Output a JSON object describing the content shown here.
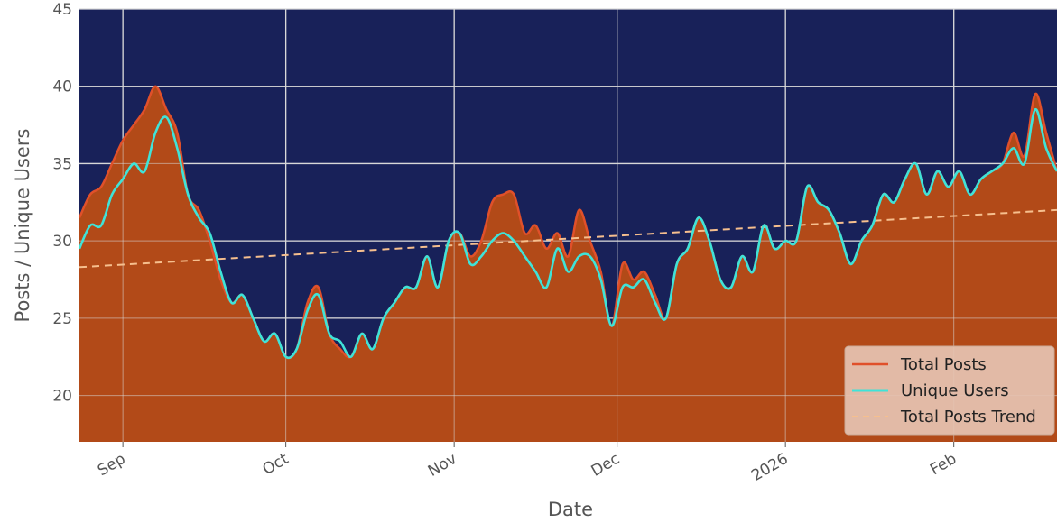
{
  "chart_data": {
    "type": "area",
    "title": "",
    "xlabel": "Date",
    "ylabel": "Posts / Unique Users",
    "x_ticks": [
      "Sep",
      "Oct",
      "Nov",
      "Dec",
      "2026",
      "Feb"
    ],
    "x_tick_dates": [
      "2025-09-01",
      "2025-10-01",
      "2025-11-01",
      "2025-12-01",
      "2026-01-01",
      "2026-02-01"
    ],
    "xlim": [
      "2025-08-24",
      "2026-02-20"
    ],
    "y_ticks": [
      20,
      25,
      30,
      35,
      40,
      45
    ],
    "ylim": [
      17,
      45
    ],
    "grid": true,
    "legend_position": "lower-right",
    "colors": {
      "plot_background": "#182159",
      "grid": "#d9d9d9",
      "area_fill": "#b24a18",
      "total_posts_line": "#e0502a",
      "unique_users_line": "#3fe3d8",
      "trend_line": "#f6bf8e",
      "legend_background": "#e5c3b2"
    },
    "series": [
      {
        "name": "Total Posts",
        "style": "line+area",
        "x": [
          "2025-08-24",
          "2025-08-26",
          "2025-08-28",
          "2025-08-30",
          "2025-09-01",
          "2025-09-03",
          "2025-09-05",
          "2025-09-07",
          "2025-09-09",
          "2025-09-11",
          "2025-09-13",
          "2025-09-15",
          "2025-09-17",
          "2025-09-19",
          "2025-09-21",
          "2025-09-23",
          "2025-09-25",
          "2025-09-27",
          "2025-09-29",
          "2025-10-01",
          "2025-10-03",
          "2025-10-05",
          "2025-10-07",
          "2025-10-09",
          "2025-10-11",
          "2025-10-13",
          "2025-10-15",
          "2025-10-17",
          "2025-10-19",
          "2025-10-21",
          "2025-10-23",
          "2025-10-25",
          "2025-10-27",
          "2025-10-29",
          "2025-10-31",
          "2025-11-02",
          "2025-11-04",
          "2025-11-06",
          "2025-11-08",
          "2025-11-10",
          "2025-11-12",
          "2025-11-14",
          "2025-11-16",
          "2025-11-18",
          "2025-11-20",
          "2025-11-22",
          "2025-11-24",
          "2025-11-26",
          "2025-11-28",
          "2025-11-30",
          "2025-12-02",
          "2025-12-04",
          "2025-12-06",
          "2025-12-08",
          "2025-12-10",
          "2025-12-12",
          "2025-12-14",
          "2025-12-16",
          "2025-12-18",
          "2025-12-20",
          "2025-12-22",
          "2025-12-24",
          "2025-12-26",
          "2025-12-28",
          "2025-12-30",
          "2026-01-01",
          "2026-01-03",
          "2026-01-05",
          "2026-01-07",
          "2026-01-09",
          "2026-01-11",
          "2026-01-13",
          "2026-01-15",
          "2026-01-17",
          "2026-01-19",
          "2026-01-21",
          "2026-01-23",
          "2026-01-25",
          "2026-01-27",
          "2026-01-29",
          "2026-01-31",
          "2026-02-02",
          "2026-02-04",
          "2026-02-06",
          "2026-02-08",
          "2026-02-10",
          "2026-02-12",
          "2026-02-14",
          "2026-02-16",
          "2026-02-18",
          "2026-02-20"
        ],
        "values": [
          31.5,
          33,
          33.5,
          35,
          36.5,
          37.5,
          38.5,
          40,
          38.5,
          37,
          33,
          32,
          30,
          27.5,
          26,
          26.5,
          25,
          23.5,
          24,
          22.5,
          23,
          26,
          27,
          24,
          23,
          22.5,
          24,
          23,
          25,
          26,
          27,
          27,
          29,
          27,
          30,
          30.5,
          29,
          30,
          32.5,
          33,
          33,
          30.5,
          31,
          29.5,
          30.5,
          29,
          32,
          30,
          28,
          24.5,
          28.5,
          27.5,
          28,
          26.5,
          25,
          28.5,
          29.5,
          31.5,
          30,
          27.5,
          27,
          29,
          28,
          31,
          29.5,
          30,
          30,
          33.5,
          32.5,
          32,
          30.5,
          28.5,
          30,
          31,
          33,
          32.5,
          34,
          35,
          33,
          34.5,
          33.5,
          34.5,
          33,
          34,
          34.5,
          35,
          37,
          35.5,
          39.5,
          37,
          34.5
        ]
      },
      {
        "name": "Unique Users",
        "style": "line",
        "x": [
          "2025-08-24",
          "2025-08-26",
          "2025-08-28",
          "2025-08-30",
          "2025-09-01",
          "2025-09-03",
          "2025-09-05",
          "2025-09-07",
          "2025-09-09",
          "2025-09-11",
          "2025-09-13",
          "2025-09-15",
          "2025-09-17",
          "2025-09-19",
          "2025-09-21",
          "2025-09-23",
          "2025-09-25",
          "2025-09-27",
          "2025-09-29",
          "2025-10-01",
          "2025-10-03",
          "2025-10-05",
          "2025-10-07",
          "2025-10-09",
          "2025-10-11",
          "2025-10-13",
          "2025-10-15",
          "2025-10-17",
          "2025-10-19",
          "2025-10-21",
          "2025-10-23",
          "2025-10-25",
          "2025-10-27",
          "2025-10-29",
          "2025-10-31",
          "2025-11-02",
          "2025-11-04",
          "2025-11-06",
          "2025-11-08",
          "2025-11-10",
          "2025-11-12",
          "2025-11-14",
          "2025-11-16",
          "2025-11-18",
          "2025-11-20",
          "2025-11-22",
          "2025-11-24",
          "2025-11-26",
          "2025-11-28",
          "2025-11-30",
          "2025-12-02",
          "2025-12-04",
          "2025-12-06",
          "2025-12-08",
          "2025-12-10",
          "2025-12-12",
          "2025-12-14",
          "2025-12-16",
          "2025-12-18",
          "2025-12-20",
          "2025-12-22",
          "2025-12-24",
          "2025-12-26",
          "2025-12-28",
          "2025-12-30",
          "2026-01-01",
          "2026-01-03",
          "2026-01-05",
          "2026-01-07",
          "2026-01-09",
          "2026-01-11",
          "2026-01-13",
          "2026-01-15",
          "2026-01-17",
          "2026-01-19",
          "2026-01-21",
          "2026-01-23",
          "2026-01-25",
          "2026-01-27",
          "2026-01-29",
          "2026-01-31",
          "2026-02-02",
          "2026-02-04",
          "2026-02-06",
          "2026-02-08",
          "2026-02-10",
          "2026-02-12",
          "2026-02-14",
          "2026-02-16",
          "2026-02-18",
          "2026-02-20"
        ],
        "values": [
          29.5,
          31,
          31,
          33,
          34,
          35,
          34.5,
          37,
          38,
          36,
          33,
          31.5,
          30.5,
          28,
          26,
          26.5,
          25,
          23.5,
          24,
          22.5,
          23,
          25.5,
          26.5,
          24,
          23.5,
          22.5,
          24,
          23,
          25,
          26,
          27,
          27,
          29,
          27,
          30,
          30.5,
          28.5,
          29,
          30,
          30.5,
          30,
          29,
          28,
          27,
          29.5,
          28,
          29,
          29,
          27.5,
          24.5,
          27,
          27,
          27.5,
          26,
          25,
          28.5,
          29.5,
          31.5,
          30,
          27.5,
          27,
          29,
          28,
          31,
          29.5,
          30,
          30,
          33.5,
          32.5,
          32,
          30.5,
          28.5,
          30,
          31,
          33,
          32.5,
          34,
          35,
          33,
          34.5,
          33.5,
          34.5,
          33,
          34,
          34.5,
          35,
          36,
          35,
          38.5,
          36,
          34.5
        ]
      },
      {
        "name": "Total Posts Trend",
        "style": "dashed",
        "x": [
          "2025-08-24",
          "2026-02-20"
        ],
        "values": [
          28.3,
          32.0
        ]
      }
    ]
  }
}
